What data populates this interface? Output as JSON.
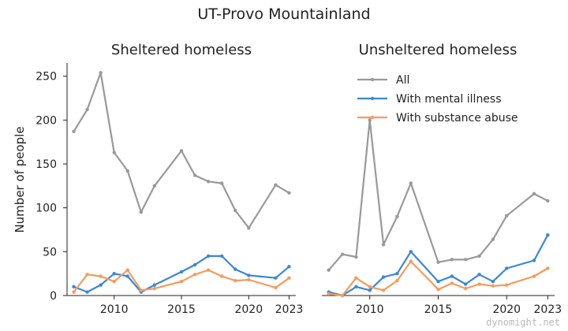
{
  "suptitle": "UT-Provo Mountainland",
  "watermark": "dynomight.net",
  "ylabel": "Number of people",
  "legend": {
    "placement": "top-right of second panel",
    "entries": [
      "All",
      "With mental illness",
      "With substance abuse"
    ]
  },
  "colors": {
    "All": "#999999",
    "With mental illness": "#3a87d8",
    "With substance abuse": "#f79a5b"
  },
  "chart_data": [
    {
      "type": "line",
      "title": "Sheltered homeless",
      "x_ticks": [
        2010,
        2015,
        2020,
        2023
      ],
      "y_ticks": [
        0,
        50,
        100,
        150,
        200,
        250
      ],
      "xlim": [
        2006.5,
        2023.5
      ],
      "ylim": [
        0,
        265
      ],
      "grid": false,
      "series": [
        {
          "name": "All",
          "x": [
            2007,
            2008,
            2009,
            2010,
            2011,
            2012,
            2013,
            2015,
            2016,
            2017,
            2018,
            2019,
            2020,
            2022,
            2023
          ],
          "y": [
            187,
            212,
            254,
            163,
            142,
            95,
            125,
            165,
            137,
            130,
            128,
            97,
            77,
            126,
            117
          ]
        },
        {
          "name": "With mental illness",
          "x": [
            2007,
            2008,
            2009,
            2010,
            2011,
            2012,
            2013,
            2015,
            2016,
            2017,
            2018,
            2019,
            2020,
            2022,
            2023
          ],
          "y": [
            10,
            4,
            12,
            25,
            22,
            4,
            12,
            27,
            35,
            45,
            45,
            30,
            23,
            20,
            33
          ]
        },
        {
          "name": "With substance abuse",
          "x": [
            2007,
            2008,
            2009,
            2010,
            2011,
            2012,
            2013,
            2015,
            2016,
            2017,
            2018,
            2019,
            2020,
            2022,
            2023
          ],
          "y": [
            4,
            24,
            22,
            16,
            29,
            6,
            8,
            16,
            24,
            29,
            22,
            17,
            18,
            9,
            20
          ]
        }
      ]
    },
    {
      "type": "line",
      "title": "Unsheltered homeless",
      "x_ticks": [
        2010,
        2015,
        2020,
        2023
      ],
      "y_ticks": [
        0,
        50,
        100,
        150,
        200,
        250
      ],
      "xlim": [
        2006.5,
        2023.5
      ],
      "ylim": [
        0,
        265
      ],
      "grid": false,
      "series": [
        {
          "name": "All",
          "x": [
            2007,
            2008,
            2009,
            2010,
            2011,
            2012,
            2013,
            2015,
            2016,
            2017,
            2018,
            2019,
            2020,
            2022,
            2023
          ],
          "y": [
            29,
            47,
            44,
            200,
            58,
            90,
            128,
            38,
            41,
            41,
            45,
            64,
            91,
            116,
            108
          ]
        },
        {
          "name": "With mental illness",
          "x": [
            2007,
            2008,
            2009,
            2010,
            2011,
            2012,
            2013,
            2015,
            2016,
            2017,
            2018,
            2019,
            2020,
            2022,
            2023
          ],
          "y": [
            4,
            0,
            10,
            6,
            21,
            25,
            50,
            16,
            22,
            13,
            24,
            16,
            31,
            40,
            69
          ]
        },
        {
          "name": "With substance abuse",
          "x": [
            2007,
            2008,
            2009,
            2010,
            2011,
            2012,
            2013,
            2015,
            2016,
            2017,
            2018,
            2019,
            2020,
            2022,
            2023
          ],
          "y": [
            2,
            0,
            20,
            10,
            6,
            17,
            39,
            7,
            14,
            8,
            13,
            11,
            12,
            22,
            31
          ]
        }
      ]
    }
  ]
}
